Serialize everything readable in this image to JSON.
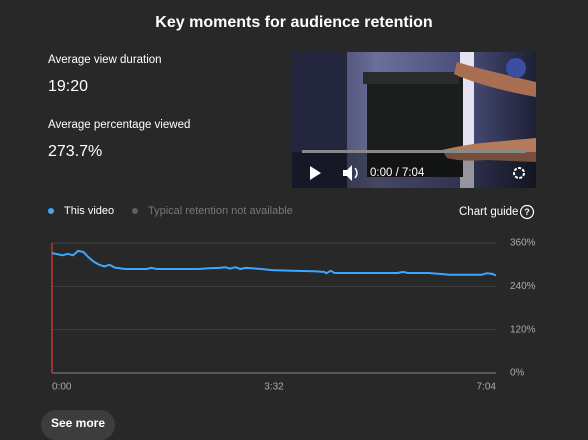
{
  "header": {
    "title": "Key moments for audience retention"
  },
  "stats": [
    {
      "label": "Average view duration",
      "value": "19:20"
    },
    {
      "label": "Average percentage viewed",
      "value": "273.7%"
    }
  ],
  "video": {
    "time": "0:00 / 7:04"
  },
  "chart_guide": "Chart guide",
  "see_more": "See more",
  "chart_data": {
    "type": "line",
    "x": [
      0,
      5,
      10,
      15,
      20,
      25,
      30,
      35,
      40,
      45,
      50,
      55,
      60,
      70,
      80,
      90,
      95,
      100,
      120,
      140,
      150,
      160,
      165,
      170,
      175,
      180,
      185,
      200,
      210,
      230,
      250,
      260,
      262,
      266,
      270,
      300,
      330,
      335,
      340,
      360,
      380,
      400,
      410,
      415,
      420,
      424
    ],
    "series": [
      {
        "name": "This video",
        "color": "#3ea6ff",
        "values": [
          332,
          329,
          326,
          330,
          326,
          338,
          335,
          320,
          308,
          300,
          295,
          300,
          292,
          288,
          288,
          288,
          291,
          288,
          288,
          288,
          290,
          291,
          293,
          289,
          293,
          288,
          291,
          288,
          285,
          283,
          282,
          280,
          276,
          283,
          277,
          277,
          277,
          280,
          277,
          277,
          272,
          272,
          272,
          276,
          275,
          270
        ]
      }
    ],
    "unavailable_series": {
      "name": "Typical retention not available",
      "color": "#606060"
    },
    "xlim": [
      0,
      424
    ],
    "xticks": [
      {
        "value": 0,
        "label": "0:00"
      },
      {
        "value": 212,
        "label": "3:32"
      },
      {
        "value": 424,
        "label": "7:04"
      }
    ],
    "ylim": [
      0,
      360
    ],
    "yticks": [
      {
        "value": 0,
        "label": "0%"
      },
      {
        "value": 120,
        "label": "120%"
      },
      {
        "value": 240,
        "label": "240%"
      },
      {
        "value": 360,
        "label": "360%"
      }
    ],
    "grid": true
  }
}
